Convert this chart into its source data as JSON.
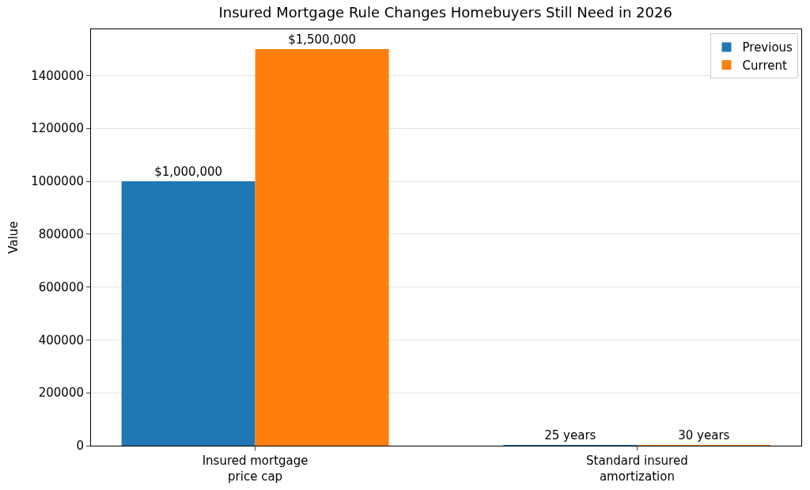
{
  "chart_data": {
    "type": "bar",
    "title": "Insured Mortgage Rule Changes Homebuyers Still Need in 2026",
    "ylabel": "Value",
    "categories": [
      "Insured mortgage price cap",
      "Standard insured amortization"
    ],
    "series": [
      {
        "name": "Previous",
        "color": "#1f77b4",
        "values": [
          1000000,
          25
        ],
        "value_labels": [
          "$1,000,000",
          "25 years"
        ]
      },
      {
        "name": "Current",
        "color": "#ff7f0e",
        "values": [
          1500000,
          30
        ],
        "value_labels": [
          "$1,500,000",
          "30 years"
        ]
      }
    ],
    "ylim": [
      0,
      1575000
    ],
    "yticks": [
      0,
      200000,
      400000,
      600000,
      800000,
      1000000,
      1200000,
      1400000
    ],
    "grid": "y",
    "legend": "top right"
  }
}
